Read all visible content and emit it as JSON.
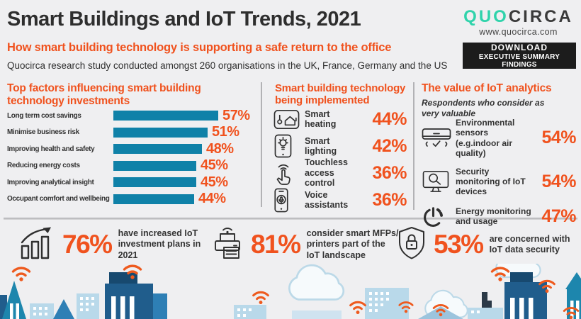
{
  "colors": {
    "background": "#efeff1",
    "accent_orange": "#f0521e",
    "bar_teal": "#0f81a8",
    "logo_teal": "#2fd3ab",
    "dark_text": "#2e2e2e",
    "button_black": "#1c1c1c",
    "city_light_blue": "#b9d9ea",
    "city_navy": "#205d8c",
    "city_teal": "#1d86ad",
    "wifi_orange": "#ee5a1e"
  },
  "header": {
    "title": "Smart Buildings and IoT Trends, 2021",
    "subtitle": "How smart building technology is supporting a safe return to the office",
    "description": "Quocirca research study conducted amongst 260 organisations in the UK, France, Germany and the US",
    "logo": {
      "part1": "QUO",
      "part2": "CIRCA",
      "url": "www.quocirca.com"
    },
    "download_button": {
      "line1": "DOWNLOAD",
      "line2": "EXECUTIVE SUMMARY FINDINGS"
    }
  },
  "chart_data": [
    {
      "type": "bar",
      "orientation": "horizontal",
      "title": "Top factors influencing smart building technology investments",
      "categories": [
        "Long term cost savings",
        "Minimise business risk",
        "Improving health and safety",
        "Reducing energy costs",
        "Improving analytical insight",
        "Occupant comfort and wellbeing"
      ],
      "values": [
        57,
        51,
        48,
        45,
        45,
        44
      ],
      "value_labels": [
        "57%",
        "51%",
        "48%",
        "45%",
        "45%",
        "44%"
      ],
      "unit": "percent",
      "xlim": [
        0,
        60
      ],
      "grid": false,
      "bar_color": "#0f81a8",
      "value_color": "#f0521e"
    },
    {
      "type": "stat-list",
      "title": "Smart building technology being implemented",
      "items": [
        {
          "icon": "smart-heating-icon",
          "label": "Smart heating",
          "value": "44%"
        },
        {
          "icon": "smart-lighting-icon",
          "label": "Smart lighting",
          "value": "42%"
        },
        {
          "icon": "touchless-access-icon",
          "label": "Touchless access control",
          "value": "36%"
        },
        {
          "icon": "voice-assistant-icon",
          "label": "Voice assistants",
          "value": "36%"
        }
      ]
    },
    {
      "type": "stat-list",
      "title": "The value of IoT analytics",
      "subtitle": "Respondents who consider as very valuable",
      "items": [
        {
          "icon": "air-conditioner-icon",
          "label": "Environmental sensors (e.g.indoor air quality)",
          "value": "54%"
        },
        {
          "icon": "security-monitor-icon",
          "label": "Security monitoring of IoT devices",
          "value": "54%"
        },
        {
          "icon": "energy-monitor-icon",
          "label": "Energy monitoring and usage",
          "value": "47%"
        }
      ]
    },
    {
      "type": "stat-list",
      "items": [
        {
          "icon": "growth-chart-icon",
          "value": "76%",
          "label": "have increased IoT investment plans in 2021"
        },
        {
          "icon": "printer-icon",
          "value": "81%",
          "label": "consider smart MFPs/ printers part of the IoT landscape"
        },
        {
          "icon": "shield-lock-icon",
          "value": "53%",
          "label": "are concerned with IoT data security"
        }
      ]
    }
  ]
}
